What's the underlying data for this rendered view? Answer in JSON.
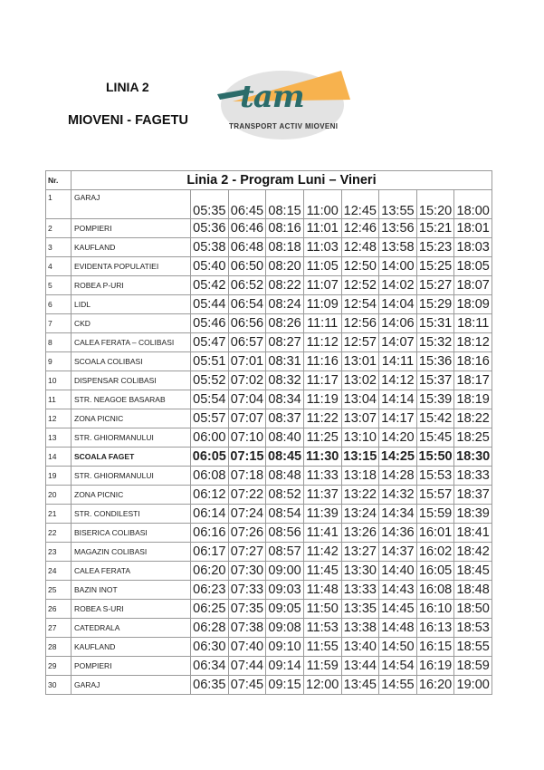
{
  "header": {
    "line": "LINIA 2",
    "route": "MIOVENI - FAGETU"
  },
  "logo": {
    "text": "tam",
    "subtitle": "TRANSPORT ACTIV MIOVENI",
    "colors": {
      "teal": "#2b6c6a",
      "orange": "#f7b24e",
      "gray": "#e3e3e3"
    }
  },
  "table": {
    "nr_header": "Nr.",
    "title": "Linia 2 - Program Luni – Vineri",
    "rows": [
      {
        "nr": "1",
        "stop": "GARAJ",
        "times": [
          "05:35",
          "06:45",
          "08:15",
          "11:00",
          "12:45",
          "13:55",
          "15:20",
          "18:00"
        ]
      },
      {
        "nr": "2",
        "stop": "POMPIERI",
        "times": [
          "05:36",
          "06:46",
          "08:16",
          "11:01",
          "12:46",
          "13:56",
          "15:21",
          "18:01"
        ]
      },
      {
        "nr": "3",
        "stop": "KAUFLAND",
        "times": [
          "05:38",
          "06:48",
          "08:18",
          "11:03",
          "12:48",
          "13:58",
          "15:23",
          "18:03"
        ]
      },
      {
        "nr": "4",
        "stop": "EVIDENTA POPULATIEI",
        "times": [
          "05:40",
          "06:50",
          "08:20",
          "11:05",
          "12:50",
          "14:00",
          "15:25",
          "18:05"
        ]
      },
      {
        "nr": "5",
        "stop": "ROBEA P-URI",
        "times": [
          "05:42",
          "06:52",
          "08:22",
          "11:07",
          "12:52",
          "14:02",
          "15:27",
          "18:07"
        ]
      },
      {
        "nr": "6",
        "stop": "LIDL",
        "times": [
          "05:44",
          "06:54",
          "08:24",
          "11:09",
          "12:54",
          "14:04",
          "15:29",
          "18:09"
        ]
      },
      {
        "nr": "7",
        "stop": "CKD",
        "times": [
          "05:46",
          "06:56",
          "08:26",
          "11:11",
          "12:56",
          "14:06",
          "15:31",
          "18:11"
        ]
      },
      {
        "nr": "8",
        "stop": "CALEA FERATA – COLIBASI",
        "times": [
          "05:47",
          "06:57",
          "08:27",
          "11:12",
          "12:57",
          "14:07",
          "15:32",
          "18:12"
        ]
      },
      {
        "nr": "9",
        "stop": "SCOALA COLIBASI",
        "times": [
          "05:51",
          "07:01",
          "08:31",
          "11:16",
          "13:01",
          "14:11",
          "15:36",
          "18:16"
        ]
      },
      {
        "nr": "10",
        "stop": "DISPENSAR COLIBASI",
        "times": [
          "05:52",
          "07:02",
          "08:32",
          "11:17",
          "13:02",
          "14:12",
          "15:37",
          "18:17"
        ]
      },
      {
        "nr": "11",
        "stop": "STR. NEAGOE BASARAB",
        "times": [
          "05:54",
          "07:04",
          "08:34",
          "11:19",
          "13:04",
          "14:14",
          "15:39",
          "18:19"
        ]
      },
      {
        "nr": "12",
        "stop": "ZONA PICNIC",
        "times": [
          "05:57",
          "07:07",
          "08:37",
          "11:22",
          "13:07",
          "14:17",
          "15:42",
          "18:22"
        ]
      },
      {
        "nr": "13",
        "stop": "STR. GHIORMANULUI",
        "times": [
          "06:00",
          "07:10",
          "08:40",
          "11:25",
          "13:10",
          "14:20",
          "15:45",
          "18:25"
        ]
      },
      {
        "nr": "14",
        "stop": "SCOALA FAGET",
        "bold": true,
        "times": [
          "06:05",
          "07:15",
          "08:45",
          "11:30",
          "13:15",
          "14:25",
          "15:50",
          "18:30"
        ]
      },
      {
        "nr": "19",
        "stop": "STR. GHIORMANULUI",
        "times": [
          "06:08",
          "07:18",
          "08:48",
          "11:33",
          "13:18",
          "14:28",
          "15:53",
          "18:33"
        ]
      },
      {
        "nr": "20",
        "stop": "ZONA PICNIC",
        "times": [
          "06:12",
          "07:22",
          "08:52",
          "11:37",
          "13:22",
          "14:32",
          "15:57",
          "18:37"
        ]
      },
      {
        "nr": "21",
        "stop": "STR. CONDILESTI",
        "times": [
          "06:14",
          "07:24",
          "08:54",
          "11:39",
          "13:24",
          "14:34",
          "15:59",
          "18:39"
        ]
      },
      {
        "nr": "22",
        "stop": "BISERICA COLIBASI",
        "times": [
          "06:16",
          "07:26",
          "08:56",
          "11:41",
          "13:26",
          "14:36",
          "16:01",
          "18:41"
        ]
      },
      {
        "nr": "23",
        "stop": "MAGAZIN COLIBASI",
        "times": [
          "06:17",
          "07:27",
          "08:57",
          "11:42",
          "13:27",
          "14:37",
          "16:02",
          "18:42"
        ]
      },
      {
        "nr": "24",
        "stop": "CALEA FERATA",
        "times": [
          "06:20",
          "07:30",
          "09:00",
          "11:45",
          "13:30",
          "14:40",
          "16:05",
          "18:45"
        ]
      },
      {
        "nr": "25",
        "stop": "BAZIN INOT",
        "times": [
          "06:23",
          "07:33",
          "09:03",
          "11:48",
          "13:33",
          "14:43",
          "16:08",
          "18:48"
        ]
      },
      {
        "nr": "26",
        "stop": "ROBEA S-URI",
        "times": [
          "06:25",
          "07:35",
          "09:05",
          "11:50",
          "13:35",
          "14:45",
          "16:10",
          "18:50"
        ]
      },
      {
        "nr": "27",
        "stop": "CATEDRALA",
        "times": [
          "06:28",
          "07:38",
          "09:08",
          "11:53",
          "13:38",
          "14:48",
          "16:13",
          "18:53"
        ]
      },
      {
        "nr": "28",
        "stop": "KAUFLAND",
        "times": [
          "06:30",
          "07:40",
          "09:10",
          "11:55",
          "13:40",
          "14:50",
          "16:15",
          "18:55"
        ]
      },
      {
        "nr": "29",
        "stop": "POMPIERI",
        "times": [
          "06:34",
          "07:44",
          "09:14",
          "11:59",
          "13:44",
          "14:54",
          "16:19",
          "18:59"
        ]
      },
      {
        "nr": "30",
        "stop": "GARAJ",
        "times": [
          "06:35",
          "07:45",
          "09:15",
          "12:00",
          "13:45",
          "14:55",
          "16:20",
          "19:00"
        ]
      }
    ]
  }
}
